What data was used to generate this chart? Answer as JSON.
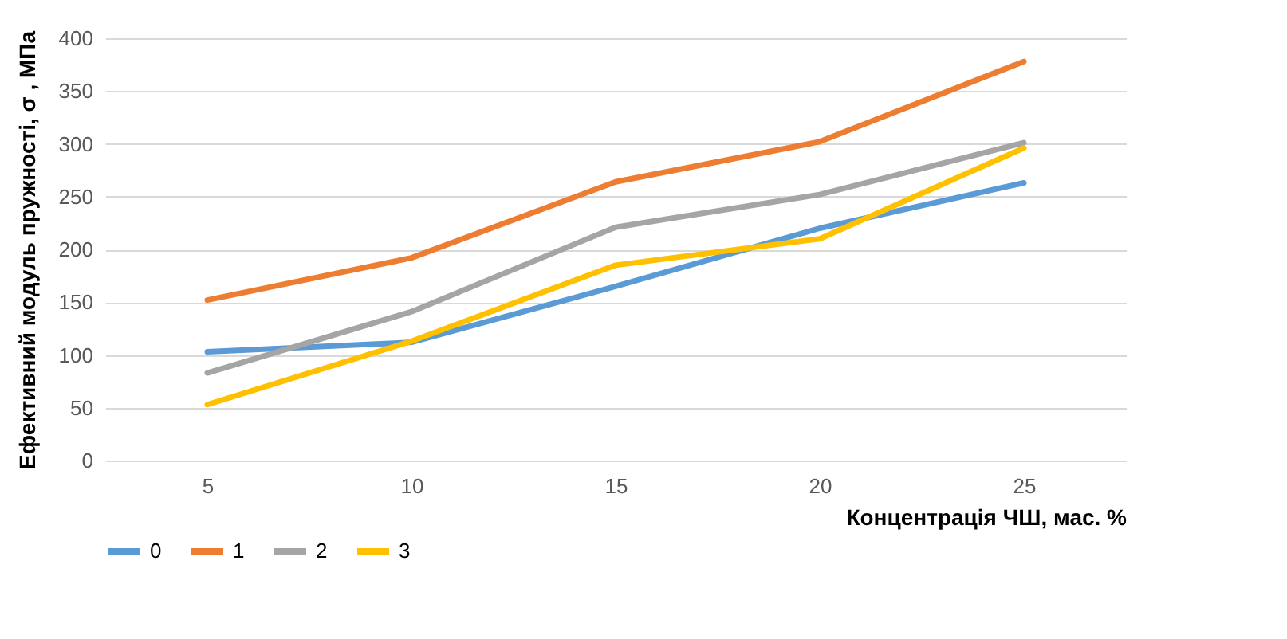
{
  "chart_data": {
    "type": "line",
    "xlabel": "Концентрація ЧШ, мас. %",
    "ylabel": "Ефективний модуль пружності, σ , МПа",
    "categories": [
      "5",
      "10",
      "15",
      "20",
      "25"
    ],
    "series": [
      {
        "name": "0",
        "color": "#5b9bd5",
        "values": [
          103,
          112,
          165,
          220,
          263
        ]
      },
      {
        "name": "1",
        "color": "#ed7d31",
        "values": [
          152,
          192,
          264,
          302,
          378
        ]
      },
      {
        "name": "2",
        "color": "#a5a5a5",
        "values": [
          83,
          141,
          221,
          252,
          301
        ]
      },
      {
        "name": "3",
        "color": "#ffc000",
        "values": [
          53,
          113,
          185,
          210,
          296
        ]
      }
    ],
    "ylim": [
      0,
      400
    ],
    "yticks": [
      0,
      50,
      100,
      150,
      200,
      250,
      300,
      350,
      400
    ],
    "grid": "y",
    "legend": "bottom",
    "marker": "none",
    "line_style": "solid"
  }
}
